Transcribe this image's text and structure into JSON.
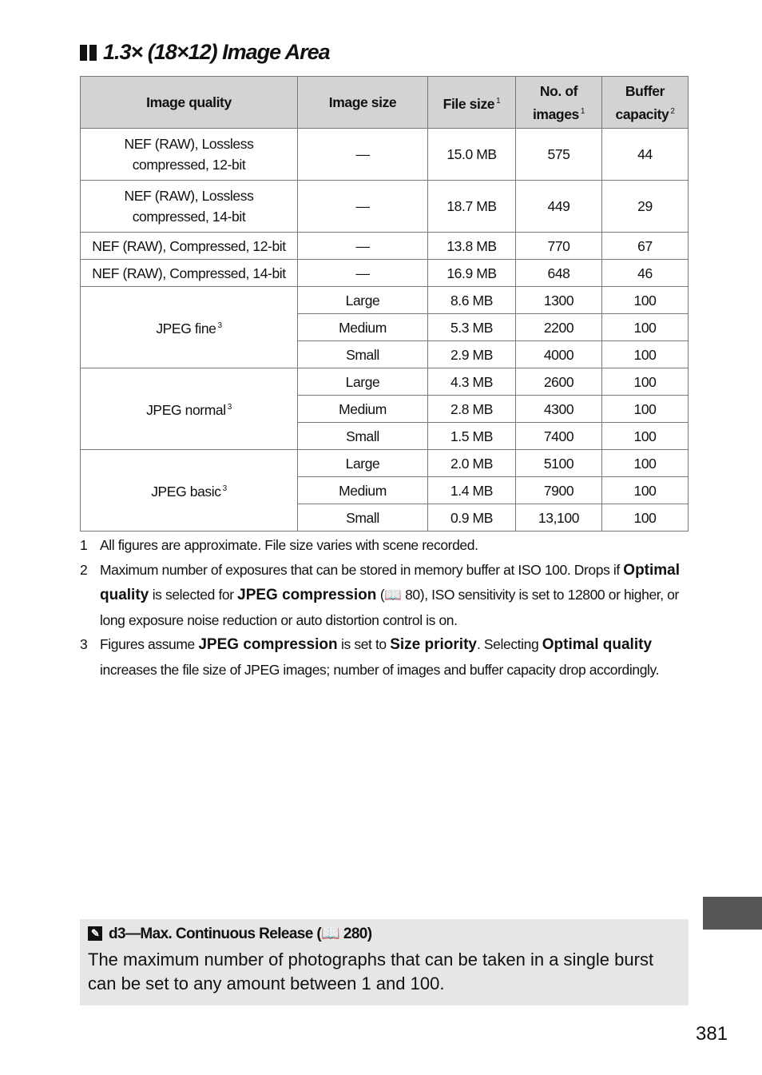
{
  "title": "1.3× (18×12) Image Area",
  "table": {
    "headers": [
      {
        "label": "Image quality",
        "sup": ""
      },
      {
        "label": "Image size",
        "sup": ""
      },
      {
        "label": "File size",
        "sup": "1"
      },
      {
        "label": "No. of images",
        "sup": "1"
      },
      {
        "label": "Buffer capacity",
        "sup": "2"
      }
    ],
    "rows": [
      {
        "quality": "NEF (RAW), Lossless compressed, 12-bit",
        "size": "—",
        "file": "15.0 MB",
        "images": "575",
        "buffer": "44"
      },
      {
        "quality": "NEF (RAW), Lossless compressed, 14-bit",
        "size": "—",
        "file": "18.7 MB",
        "images": "449",
        "buffer": "29"
      },
      {
        "quality": "NEF (RAW), Compressed, 12-bit",
        "size": "—",
        "file": "13.8 MB",
        "images": "770",
        "buffer": "67"
      },
      {
        "quality": "NEF (RAW), Compressed, 14-bit",
        "size": "—",
        "file": "16.9 MB",
        "images": "648",
        "buffer": "46"
      }
    ],
    "groups": [
      {
        "quality": "JPEG fine",
        "sup": "3",
        "rows": [
          {
            "size": "Large",
            "file": "8.6 MB",
            "images": "1300",
            "buffer": "100"
          },
          {
            "size": "Medium",
            "file": "5.3 MB",
            "images": "2200",
            "buffer": "100"
          },
          {
            "size": "Small",
            "file": "2.9 MB",
            "images": "4000",
            "buffer": "100"
          }
        ]
      },
      {
        "quality": "JPEG normal",
        "sup": "3",
        "rows": [
          {
            "size": "Large",
            "file": "4.3 MB",
            "images": "2600",
            "buffer": "100"
          },
          {
            "size": "Medium",
            "file": "2.8 MB",
            "images": "4300",
            "buffer": "100"
          },
          {
            "size": "Small",
            "file": "1.5 MB",
            "images": "7400",
            "buffer": "100"
          }
        ]
      },
      {
        "quality": "JPEG basic",
        "sup": "3",
        "rows": [
          {
            "size": "Large",
            "file": "2.0 MB",
            "images": "5100",
            "buffer": "100"
          },
          {
            "size": "Medium",
            "file": "1.4 MB",
            "images": "7900",
            "buffer": "100"
          },
          {
            "size": "Small",
            "file": "0.9 MB",
            "images": "13,100",
            "buffer": "100"
          }
        ]
      }
    ]
  },
  "notes": [
    {
      "n": "1",
      "parts": [
        {
          "t": "All figures are approximate.  File size varies with scene recorded."
        }
      ]
    },
    {
      "n": "2",
      "parts": [
        {
          "t": "Maximum number of exposures that can be stored in memory buffer at ISO 100.  Drops if "
        },
        {
          "t": "Optimal quality",
          "b": true
        },
        {
          "t": " is selected for "
        },
        {
          "t": "JPEG compression",
          "b": true
        },
        {
          "t": " (📖 80), ISO sensitivity is set to 12800 or higher, or long exposure noise reduction or auto distortion control is on."
        }
      ]
    },
    {
      "n": "3",
      "parts": [
        {
          "t": "Figures assume "
        },
        {
          "t": "JPEG compression",
          "b": true
        },
        {
          "t": " is set to "
        },
        {
          "t": "Size priority",
          "b": true
        },
        {
          "t": ".  Selecting "
        },
        {
          "t": "Optimal quality",
          "b": true
        },
        {
          "t": " increases the file size of JPEG images; number of images and buffer capacity drop accordingly."
        }
      ]
    }
  ],
  "box": {
    "heading": "d3—Max. Continuous Release (📖 280)",
    "body": "The maximum number of photographs that can be taken in a single burst can be set to any amount between 1 and 100.",
    "icon": "pencil-icon"
  },
  "page_number": "381"
}
